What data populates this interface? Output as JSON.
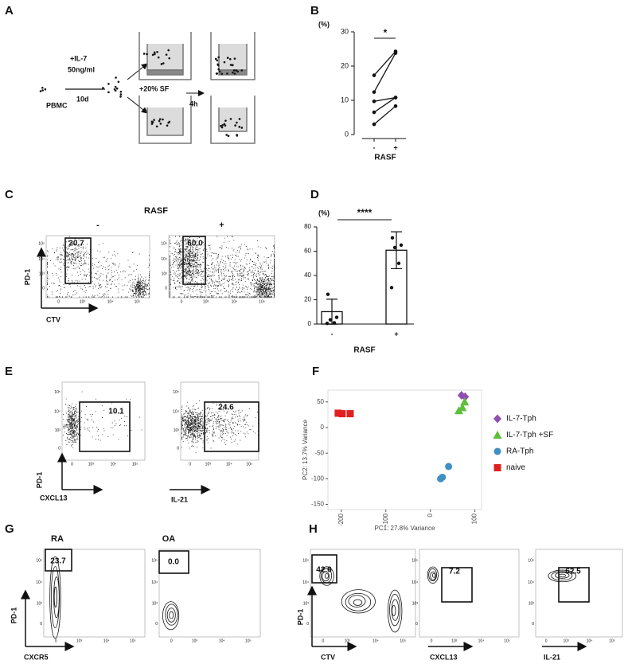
{
  "schematic": {
    "label": "A",
    "pbmc": "PBMC",
    "il7": "+IL-7",
    "conc": "50ng/ml",
    "days": "10d",
    "sf": "+20% SF",
    "time": "4h"
  },
  "chart_data": [
    {
      "type": "line",
      "label": "B",
      "y_label": "(%)",
      "x_label": "RASF",
      "significance": "*",
      "categories": [
        "-",
        "+"
      ],
      "series": [
        {
          "values": [
            17.3,
            24.3
          ]
        },
        {
          "values": [
            12.4,
            23.8
          ]
        },
        {
          "values": [
            9.7,
            10.8
          ]
        },
        {
          "values": [
            6.5,
            10.8
          ]
        },
        {
          "values": [
            3.0,
            8.3
          ]
        }
      ],
      "color": "#111111",
      "ylim": [
        0,
        30
      ],
      "yticks": [
        0,
        10,
        20,
        30
      ]
    },
    {
      "type": "bar",
      "label": "D",
      "y_label": "(%)",
      "x_label": "RASF",
      "significance": "****",
      "categories": [
        "-",
        "+"
      ],
      "values": [
        10.2,
        60.8
      ],
      "errors": [
        10.3,
        15.2
      ],
      "points": [
        [
          24.5,
          5.5,
          3.5,
          1.0,
          0.5
        ],
        [
          71,
          65,
          63,
          50,
          30
        ]
      ],
      "color": "#ffffff",
      "ylim": [
        0,
        80
      ],
      "yticks": [
        0,
        20,
        40,
        60,
        80
      ]
    },
    {
      "type": "scatter",
      "label": "F",
      "x_label": "PC1: 27.8% Variance",
      "y_label": "PC2: 13.7% Variance",
      "xlim": [
        -230,
        115
      ],
      "xticks": [
        -200,
        -100,
        0,
        100
      ],
      "ylim": [
        -160,
        73
      ],
      "yticks": [
        -150,
        -100,
        -50,
        0,
        50
      ],
      "series": [
        {
          "name": "IL-7-Tph",
          "color": "#8e4fb0",
          "marker": "diamond",
          "x": [
            70,
            78
          ],
          "y": [
            63,
            60
          ]
        },
        {
          "name": "IL-7-Tph +SF",
          "color": "#5cbf3a",
          "marker": "triangle",
          "x": [
            77,
            72,
            64
          ],
          "y": [
            50,
            39,
            33
          ]
        },
        {
          "name": "RA-Tph",
          "color": "#3f8fc4",
          "marker": "circle",
          "x": [
            41,
            27,
            23
          ],
          "y": [
            -76,
            -97,
            -100
          ]
        },
        {
          "name": "naive",
          "color": "#e02020",
          "marker": "square",
          "x": [
            -207,
            -198,
            -180
          ],
          "y": [
            28,
            27,
            27
          ]
        }
      ]
    }
  ],
  "flow_ticks": [
    "0",
    "10³",
    "10⁴",
    "10⁵"
  ],
  "flow_panels": [
    {
      "label": "C",
      "header": "RASF",
      "titles": [
        "-",
        "+"
      ],
      "gates": [
        "20.7",
        "60.0"
      ],
      "y_axis": "PD-1",
      "x_axes": [
        "CTV"
      ]
    },
    {
      "label": "E",
      "gates": [
        "10.1",
        "24.6"
      ],
      "y_axis": "PD-1",
      "x_axes": [
        "CXCL13",
        "IL-21"
      ]
    },
    {
      "label": "G",
      "titles": [
        "RA",
        "OA"
      ],
      "gates": [
        "23.7",
        "0.0"
      ],
      "y_axis": "PD-1",
      "x_axes": [
        "CXCR5"
      ]
    },
    {
      "label": "H",
      "gates": [
        "42.6",
        "7.2",
        "62.5"
      ],
      "y_axis": "PD-1",
      "x_axes": [
        "CTV",
        "CXCL13",
        "IL-21"
      ]
    }
  ]
}
